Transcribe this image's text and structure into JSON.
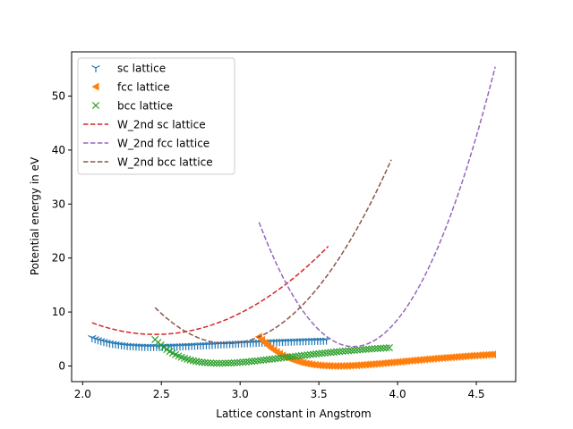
{
  "chart_data": {
    "type": "scatter",
    "title": "",
    "xlabel": "Lattice constant in Angstrom",
    "ylabel": "Potential energy in eV",
    "xlim": [
      1.93,
      4.75
    ],
    "ylim": [
      -2.9,
      58.2
    ],
    "xticks": [
      "2.0",
      "2.5",
      "3.0",
      "3.5",
      "4.0",
      "4.5"
    ],
    "yticks": [
      "0",
      "10",
      "20",
      "30",
      "40",
      "50"
    ],
    "grid": false,
    "legend_position": "upper-left",
    "series": [
      {
        "name": "sc lattice",
        "kind": "markers",
        "marker": "tri-down",
        "color": "#1f77b4",
        "x_range": [
          2.06,
          3.55
        ],
        "x_step": 0.0186,
        "model": {
          "a0": 2.45,
          "d": 1.58,
          "alpha": 1.8,
          "min": 3.6
        }
      },
      {
        "name": "fcc lattice",
        "kind": "markers",
        "marker": "triangle-left",
        "color": "#ff7f0e",
        "x_range": [
          3.12,
          4.62
        ],
        "x_step": 0.0188,
        "model": {
          "a0": 3.61,
          "d": 3.2,
          "alpha": 1.7,
          "min": 0.0
        }
      },
      {
        "name": "bcc lattice",
        "kind": "markers",
        "marker": "x",
        "color": "#2ca02c",
        "x_range": [
          2.46,
          3.95
        ],
        "x_step": 0.0186,
        "model": {
          "a0": 2.87,
          "d": 4.0,
          "alpha": 1.75,
          "min": 0.5
        }
      },
      {
        "name": "W_2nd sc lattice",
        "kind": "dashed-line",
        "color": "#d62728",
        "x_range": [
          2.06,
          3.56
        ],
        "parabola": {
          "x0": 2.46,
          "y0": 5.85,
          "k": 13.5
        }
      },
      {
        "name": "W_2nd fcc lattice",
        "kind": "dashed-line",
        "color": "#9467bd",
        "x_range": [
          3.12,
          4.62
        ],
        "parabola": {
          "x0": 3.72,
          "y0": 3.6,
          "k": 64.0
        }
      },
      {
        "name": "W_2nd bcc lattice",
        "kind": "dashed-line",
        "color": "#8c564b",
        "x_range": [
          2.46,
          3.96
        ],
        "parabola": {
          "x0": 2.92,
          "y0": 4.15,
          "k": 31.5
        }
      }
    ]
  }
}
